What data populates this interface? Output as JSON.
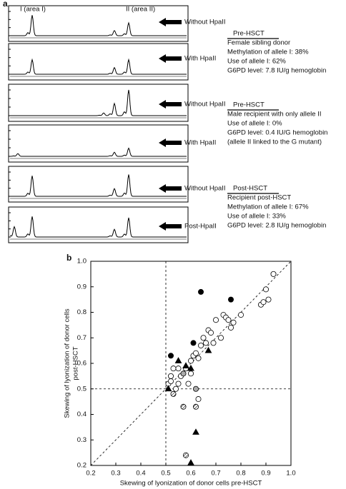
{
  "panel_a": {
    "label": "a",
    "peak_labels": [
      "I (area I)",
      "II (area II)"
    ],
    "arrows": [
      "Without HpaII",
      "With HpaII",
      "Without HpaII",
      "With HpaII",
      "Without HpaII",
      "Post-HpaII"
    ],
    "notes": [
      {
        "title": "Pre-HSCT",
        "lines": [
          "Female sibling donor",
          "Methylation of allele I: 38%",
          "Use of allele I: 62%",
          "G6PD level: 7.8 IU/g hemoglobin"
        ]
      },
      {
        "title": "Pre-HSCT",
        "lines": [
          "Male recipient with only allele II",
          "Use of allele I: 0%",
          "G6PD level: 0.4 IU/G hemoglobin",
          "(allele II linked to the G    mutant)"
        ]
      },
      {
        "title": "Post-HSCT",
        "lines": [
          "Recipient post-HSCT",
          "Methylation of allele I: 67%",
          "Use of allele I: 33%",
          "G6PD level: 2.8 IU/g hemoglobin"
        ]
      }
    ]
  },
  "chart_data": {
    "type": "scatter",
    "label": "b",
    "x_label": "Skewing of lyonization of donor cells pre-HSCT",
    "y_label": [
      "Skewing of lyonization of donor cells",
      "post-HSCT"
    ],
    "xlim": [
      0.2,
      1.0
    ],
    "ylim": [
      0.2,
      1.0
    ],
    "xticks": [
      0.2,
      0.3,
      0.4,
      0.5,
      0.6,
      0.7,
      0.8,
      0.9,
      {
        "value": 1,
        "label": "1.0"
      }
    ],
    "yticks": [
      0.2,
      0.3,
      0.4,
      0.5,
      0.6,
      0.7,
      0.8,
      0.9,
      {
        "value": 1,
        "label": "1.0"
      }
    ],
    "vline": 0.5,
    "hline": 0.5,
    "diagonal": true,
    "series": [
      {
        "marker": "circle",
        "color": "#ffffff",
        "x": [
          0.51,
          0.52,
          0.53,
          0.55,
          0.52,
          0.54,
          0.56,
          0.58,
          0.6,
          0.61,
          0.62,
          0.63,
          0.63,
          0.64,
          0.65,
          0.66,
          0.67,
          0.68,
          0.69,
          0.7,
          0.72,
          0.73,
          0.74,
          0.75,
          0.76,
          0.77,
          0.8,
          0.88,
          0.89,
          0.91,
          0.9,
          0.93,
          0.55,
          0.6,
          0.59
        ],
        "values": [
          0.52,
          0.55,
          0.58,
          0.58,
          0.53,
          0.5,
          0.55,
          0.58,
          0.61,
          0.63,
          0.64,
          0.62,
          0.46,
          0.67,
          0.7,
          0.68,
          0.73,
          0.72,
          0.68,
          0.77,
          0.7,
          0.79,
          0.78,
          0.77,
          0.74,
          0.76,
          0.79,
          0.83,
          0.84,
          0.85,
          0.89,
          0.95,
          0.52,
          0.56,
          0.52
        ]
      },
      {
        "marker": "circle",
        "color": "#000000",
        "x": [
          0.64,
          0.76,
          0.61,
          0.52
        ],
        "values": [
          0.88,
          0.85,
          0.68,
          0.63
        ]
      },
      {
        "marker": "circle",
        "color": "#aaaaaa",
        "x": [
          0.57,
          0.62
        ],
        "values": [
          0.56,
          0.5
        ]
      },
      {
        "marker": "hatched",
        "color": "#ffffff",
        "x": [
          0.53,
          0.57,
          0.62,
          0.58
        ],
        "values": [
          0.48,
          0.43,
          0.43,
          0.24
        ]
      },
      {
        "marker": "triangle",
        "color": "#000000",
        "x": [
          0.51,
          0.55,
          0.58,
          0.6,
          0.67,
          0.62,
          0.6
        ],
        "values": [
          0.5,
          0.61,
          0.59,
          0.58,
          0.65,
          0.33,
          0.21
        ]
      }
    ]
  }
}
